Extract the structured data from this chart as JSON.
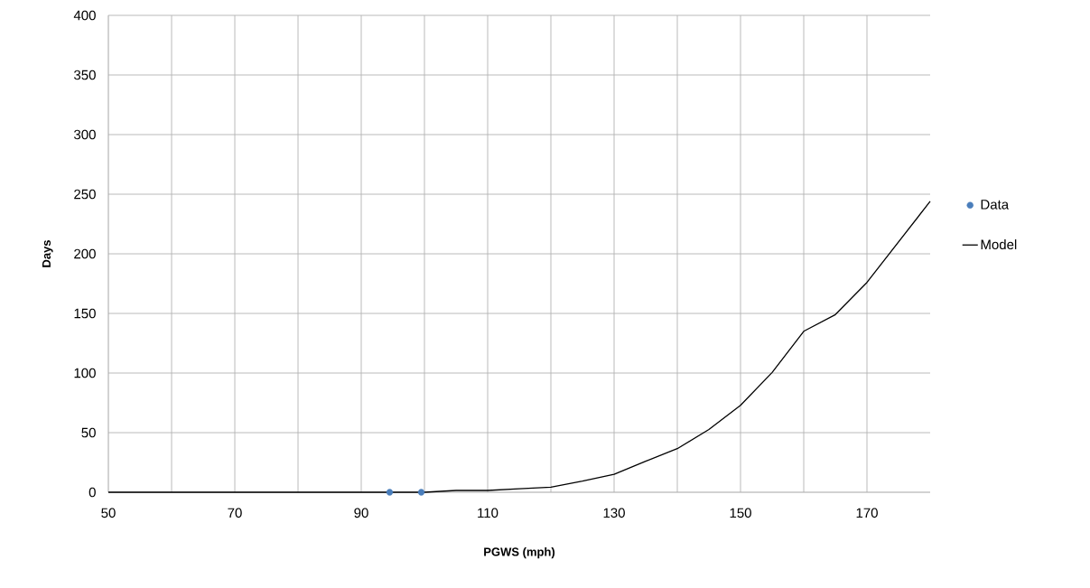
{
  "chart_data": {
    "type": "scatter",
    "xlabel": "PGWS (mph)",
    "ylabel": "Days",
    "xlim": [
      50,
      180
    ],
    "ylim": [
      0,
      400
    ],
    "xticks": [
      50,
      70,
      90,
      110,
      130,
      150,
      170
    ],
    "yticks": [
      0,
      50,
      100,
      150,
      200,
      250,
      300,
      350,
      400
    ],
    "grid": true,
    "legend": "right",
    "series": [
      {
        "name": "Data",
        "marker": "circle",
        "color": "#4a7ebb",
        "x": [
          94.5,
          99.5
        ],
        "values": [
          0,
          0
        ]
      },
      {
        "name": "Model",
        "type": "line",
        "marker": "none",
        "color": "#000000",
        "x": [
          50,
          55,
          60,
          65,
          70,
          75,
          80,
          85,
          90,
          95,
          100,
          105,
          110,
          115,
          120,
          125,
          130,
          135,
          140,
          145,
          150,
          155,
          160,
          165,
          170,
          175,
          180
        ],
        "values": [
          0,
          0,
          0,
          0,
          0,
          0,
          0,
          0,
          0,
          0,
          0,
          1.5,
          1.5,
          3,
          4.3,
          9.3,
          15,
          26,
          36.6,
          52.7,
          72.9,
          100.5,
          135,
          149,
          176,
          210,
          244
        ]
      }
    ]
  }
}
